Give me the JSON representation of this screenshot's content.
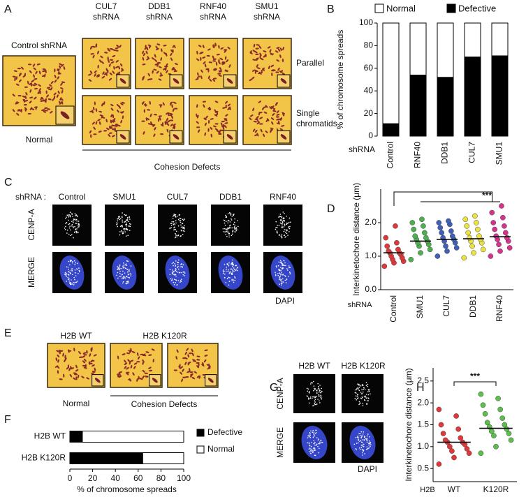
{
  "panel_labels": [
    "A",
    "B",
    "C",
    "D",
    "E",
    "F",
    "G",
    "H"
  ],
  "panel_a": {
    "control_title": "Control shRNA",
    "control_caption": "Normal",
    "columns": [
      [
        "CUL7",
        "shRNA"
      ],
      [
        "DDB1",
        "shRNA"
      ],
      [
        "RNF40",
        "shRNA"
      ],
      [
        "SMU1",
        "shRNA"
      ]
    ],
    "rows": [
      [
        "Parallel"
      ],
      [
        "Single",
        "chromatids"
      ]
    ],
    "caption": "Cohesion Defects"
  },
  "panel_c": {
    "prefix": "shRNA :",
    "columns": [
      "Control",
      "SMU1",
      "CUL7",
      "DDB1",
      "RNF40"
    ],
    "rows": [
      "CENP-A",
      "MERGE"
    ],
    "stain": "DAPI"
  },
  "panel_e": {
    "columns": [
      "H2B WT",
      "H2B K120R"
    ],
    "normal": "Normal",
    "caption": "Cohesion Defects"
  },
  "panel_g": {
    "columns": [
      "H2B WT",
      "H2B K120R"
    ],
    "rows": [
      "CENP-A",
      "MERGE"
    ],
    "stain": "DAPI"
  },
  "chart_data": [
    {
      "type": "stacked_bar",
      "ylabel": "% of chromosome spreads",
      "xlabel": "shRNA",
      "categories": [
        "Control",
        "RNF40",
        "DDB1",
        "CUL7",
        "SMU1"
      ],
      "series": [
        {
          "name": "Defective",
          "color": "#000000",
          "values": [
            11,
            54,
            52,
            70,
            71
          ]
        },
        {
          "name": "Normal",
          "color": "#ffffff",
          "values": [
            89,
            46,
            48,
            30,
            29
          ]
        }
      ],
      "ylim": [
        0,
        100
      ],
      "yticks": [
        0,
        20,
        40,
        60,
        80,
        100
      ],
      "legend": "top"
    },
    {
      "type": "strip",
      "ylabel": "Interkinetochore distance (μm)",
      "xlabel": "shRNA",
      "categories": [
        "Control",
        "SMU1",
        "CUL7",
        "DDB1",
        "RNF40"
      ],
      "colors": [
        "#e0383a",
        "#4caf50",
        "#3f5fb8",
        "#ece23c",
        "#d8338c"
      ],
      "values": [
        [
          0.7,
          0.8,
          0.85,
          0.9,
          0.95,
          1.0,
          1.05,
          1.1,
          1.1,
          1.15,
          1.2,
          1.3,
          1.4,
          1.55,
          1.9
        ],
        [
          0.9,
          1.1,
          1.2,
          1.3,
          1.35,
          1.4,
          1.45,
          1.5,
          1.55,
          1.6,
          1.7,
          1.8,
          1.9,
          2.0,
          2.1
        ],
        [
          1.0,
          1.15,
          1.25,
          1.3,
          1.4,
          1.45,
          1.5,
          1.55,
          1.6,
          1.7,
          1.75,
          1.85,
          1.95,
          2.0,
          2.05
        ],
        [
          0.95,
          1.1,
          1.2,
          1.3,
          1.4,
          1.45,
          1.5,
          1.55,
          1.6,
          1.7,
          1.8,
          1.9,
          2.0,
          2.1,
          2.2
        ],
        [
          1.0,
          1.15,
          1.25,
          1.35,
          1.45,
          1.5,
          1.55,
          1.6,
          1.7,
          1.8,
          1.9,
          2.0,
          2.15,
          2.3,
          2.5
        ]
      ],
      "means": [
        1.1,
        1.45,
        1.5,
        1.52,
        1.58
      ],
      "ylim": [
        0,
        3
      ],
      "yticks": [
        {
          "value": 0,
          "label": "0.0"
        },
        {
          "value": 1,
          "label": "1.0"
        },
        {
          "value": 2,
          "label": "2.0"
        }
      ],
      "annotation": "***"
    },
    {
      "type": "stacked_barh",
      "xlabel": "% of chromosome spreads",
      "categories": [
        "H2B WT",
        "H2B K120R"
      ],
      "series": [
        {
          "name": "Defective",
          "color": "#000000",
          "values": [
            11,
            64
          ]
        },
        {
          "name": "Normal",
          "color": "#ffffff",
          "values": [
            89,
            36
          ]
        }
      ],
      "xlim": [
        0,
        100
      ],
      "xticks": [
        0,
        20,
        40,
        60,
        80,
        100
      ],
      "legend": "right"
    },
    {
      "type": "strip",
      "ylabel": "Interkinetochore distance (μm)",
      "xlabel": "H2B",
      "categories": [
        "WT",
        "K120R"
      ],
      "colors": [
        "#e0383a",
        "#5cbf4c"
      ],
      "values": [
        [
          0.6,
          0.75,
          0.85,
          0.9,
          0.95,
          1.0,
          1.05,
          1.1,
          1.1,
          1.15,
          1.2,
          1.3,
          1.4,
          1.5,
          1.7,
          1.85
        ],
        [
          0.85,
          1.0,
          1.15,
          1.25,
          1.3,
          1.35,
          1.4,
          1.45,
          1.5,
          1.55,
          1.65,
          1.75,
          1.85,
          1.95,
          2.1,
          2.2
        ]
      ],
      "means": [
        1.1,
        1.42
      ],
      "ylim": [
        0.2,
        2.8
      ],
      "yticks": [
        0.5,
        {
          "value": 1,
          "label": "1.0"
        },
        1.5,
        {
          "value": 2,
          "label": "2.0"
        },
        2.5
      ],
      "annotation": "***"
    }
  ]
}
